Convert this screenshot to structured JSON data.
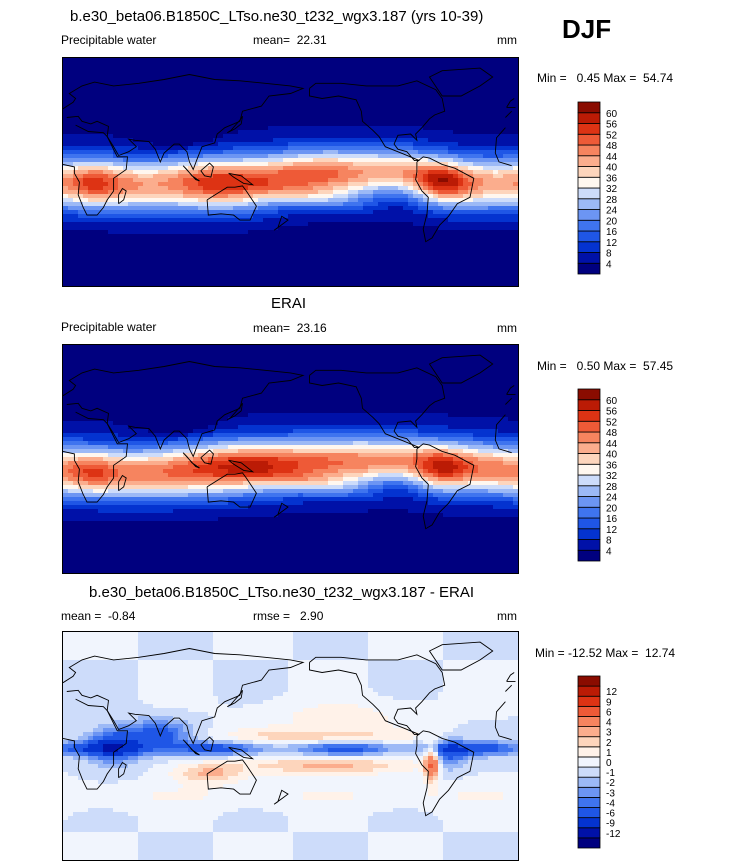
{
  "season": "DJF",
  "colors": {
    "abs_scale": [
      "#00007f",
      "#0011a8",
      "#0433d0",
      "#1f56e6",
      "#3f74ef",
      "#6c95f3",
      "#9cb9f6",
      "#cddcfa",
      "#fff7ef",
      "#fdd5bc",
      "#fbad8d",
      "#f6845f",
      "#ee5a37",
      "#dd3314",
      "#bb1b05",
      "#8a0c00"
    ],
    "diff_scale": [
      "#00007f",
      "#0011a8",
      "#0433d0",
      "#1f56e6",
      "#3f74ef",
      "#6c95f3",
      "#9cb9f6",
      "#cddcfa",
      "#f1f5fd",
      "#fff2e9",
      "#fdd5bc",
      "#fbad8d",
      "#f6845f",
      "#ee5a37",
      "#dd3314",
      "#bb1b05",
      "#8a0c00"
    ],
    "coastline": "#000000"
  },
  "chart_data": [
    {
      "type": "heatmap",
      "title": "b.e30_beta06.B1850C_LTso.ne30_t232_wgx3.187 (yrs 10-39)",
      "variable": "Precipitable water",
      "mean_label": "mean=",
      "mean": "22.31",
      "units": "mm",
      "min_label": "Min =",
      "min": "0.45",
      "max_label": "Max =",
      "max": "54.74",
      "minmax_text": "Min =   0.45 Max =  54.74",
      "colorbar_levels": [
        "4",
        "8",
        "12",
        "16",
        "20",
        "24",
        "28",
        "32",
        "36",
        "40",
        "44",
        "48",
        "52",
        "56",
        "60"
      ],
      "projection": "cylindrical equidistant, 0-360 longitude, Pacific centered",
      "grid": false
    },
    {
      "type": "heatmap",
      "title": "ERAI",
      "variable": "Precipitable water",
      "mean_label": "mean=",
      "mean": "23.16",
      "units": "mm",
      "min_label": "Min =",
      "min": "0.50",
      "max_label": "Max =",
      "max": "57.45",
      "minmax_text": "Min =   0.50 Max =  57.45",
      "colorbar_levels": [
        "4",
        "8",
        "12",
        "16",
        "20",
        "24",
        "28",
        "32",
        "36",
        "40",
        "44",
        "48",
        "52",
        "56",
        "60"
      ],
      "projection": "cylindrical equidistant, 0-360 longitude, Pacific centered",
      "grid": false
    },
    {
      "type": "heatmap",
      "title": "b.e30_beta06.B1850C_LTso.ne30_t232_wgx3.187 - ERAI",
      "mean_label": "mean =",
      "mean": "-0.84",
      "rmse_label": "rmse =",
      "rmse": "2.90",
      "units": "mm",
      "min_label": "Min =",
      "min": "-12.52",
      "max_label": "Max =",
      "max": "12.74",
      "minmax_text": "Min = -12.52 Max =  12.74",
      "colorbar_levels": [
        "-12",
        "-9",
        "-6",
        "-4",
        "-3",
        "-2",
        "-1",
        "0",
        "1",
        "2",
        "3",
        "4",
        "6",
        "9",
        "12"
      ],
      "projection": "cylindrical equidistant, 0-360 longitude, Pacific centered",
      "grid": false
    }
  ]
}
